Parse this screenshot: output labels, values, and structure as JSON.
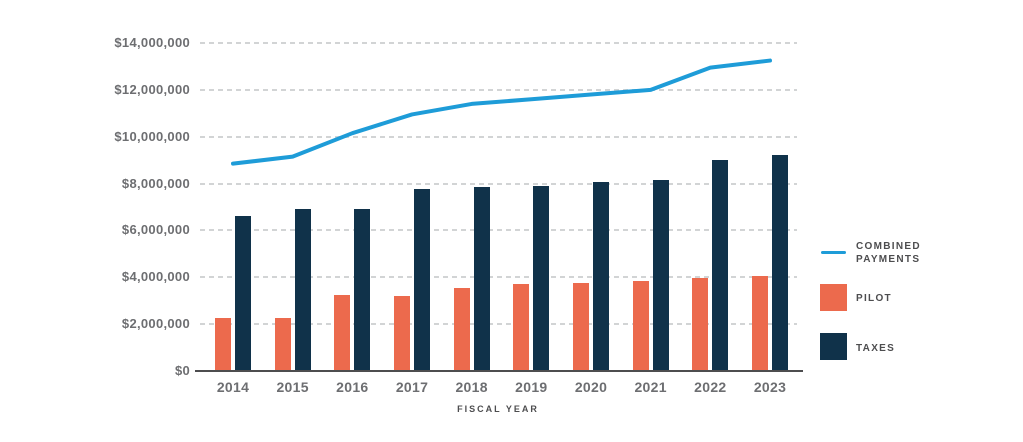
{
  "chart_data": {
    "type": "bar+line",
    "title": "",
    "xlabel": "FISCAL YEAR",
    "ylabel": "",
    "categories": [
      "2014",
      "2015",
      "2016",
      "2017",
      "2018",
      "2019",
      "2020",
      "2021",
      "2022",
      "2023"
    ],
    "series": [
      {
        "name": "PILOT",
        "values": [
          2250000,
          2250000,
          3250000,
          3200000,
          3550000,
          3700000,
          3750000,
          3850000,
          3950000,
          4050000
        ]
      },
      {
        "name": "TAXES",
        "values": [
          6600000,
          6900000,
          6900000,
          7750000,
          7850000,
          7900000,
          8050000,
          8150000,
          9000000,
          9200000
        ]
      }
    ],
    "line_series": {
      "name": "COMBINED PAYMENTS",
      "values": [
        8850000,
        9150000,
        10150000,
        10950000,
        11400000,
        11600000,
        11800000,
        12000000,
        12950000,
        13250000
      ]
    },
    "ylim": [
      0,
      14000000
    ],
    "y_ticks": [
      {
        "value": 14000000,
        "label": "$14,000,000"
      },
      {
        "value": 12000000,
        "label": "$12,000,000"
      },
      {
        "value": 10000000,
        "label": "$10,000,000"
      },
      {
        "value": 8000000,
        "label": "$8,000,000"
      },
      {
        "value": 6000000,
        "label": "$6,000,000"
      },
      {
        "value": 4000000,
        "label": "$4,000,000"
      },
      {
        "value": 2000000,
        "label": "$2,000,000"
      },
      {
        "value": 0,
        "label": "$0"
      }
    ],
    "grid": "horizontal dashed",
    "legend_position": "right"
  },
  "legend": {
    "items": [
      {
        "label": "COMBINED\nPAYMENTS",
        "swatch": "line"
      },
      {
        "label": "PILOT",
        "swatch": "box"
      },
      {
        "label": "TAXES",
        "swatch": "box"
      }
    ]
  },
  "colors": {
    "pilot": "#EC6A4D",
    "taxes": "#10324A",
    "combined_line": "#1E9CD8",
    "gridline": "#D2D4D5",
    "axis_line": "#4D4D4F",
    "tick_text": "#6D6E71",
    "legend_text": "#4D4D4F"
  }
}
